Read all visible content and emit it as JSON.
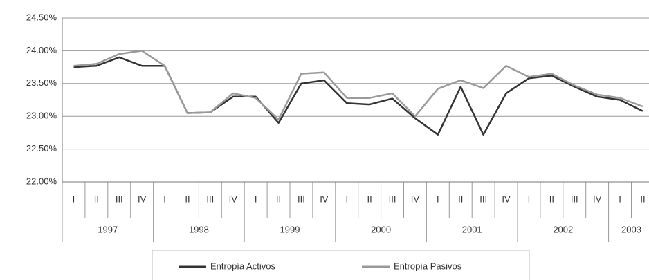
{
  "chart_data": {
    "type": "line",
    "year_groups": [
      {
        "label": "1997",
        "quarters": [
          "I",
          "II",
          "III",
          "IV"
        ]
      },
      {
        "label": "1998",
        "quarters": [
          "I",
          "II",
          "III",
          "IV"
        ]
      },
      {
        "label": "1999",
        "quarters": [
          "I",
          "II",
          "III",
          "IV"
        ]
      },
      {
        "label": "2000",
        "quarters": [
          "I",
          "II",
          "III",
          "IV"
        ]
      },
      {
        "label": "2001",
        "quarters": [
          "I",
          "II",
          "III",
          "IV"
        ]
      },
      {
        "label": "2002",
        "quarters": [
          "I",
          "II",
          "III",
          "IV"
        ]
      },
      {
        "label": "2003",
        "quarters": [
          "I",
          "II"
        ]
      }
    ],
    "series": [
      {
        "name": "Entropía Activos",
        "color": "#333333",
        "values": [
          23.75,
          23.77,
          23.9,
          23.77,
          23.77,
          23.05,
          23.06,
          23.3,
          23.3,
          22.9,
          23.5,
          23.55,
          23.2,
          23.18,
          23.27,
          22.97,
          22.72,
          23.45,
          22.72,
          23.35,
          23.58,
          23.62,
          23.45,
          23.3,
          23.25,
          23.08
        ]
      },
      {
        "name": "Entropía Pasivos",
        "color": "#9a9a9a",
        "values": [
          23.77,
          23.8,
          23.95,
          24.0,
          23.77,
          23.05,
          23.06,
          23.35,
          23.28,
          22.95,
          23.65,
          23.67,
          23.28,
          23.28,
          23.35,
          23.0,
          23.42,
          23.55,
          23.43,
          23.77,
          23.6,
          23.65,
          23.47,
          23.33,
          23.28,
          23.15
        ]
      }
    ],
    "ylim": [
      22,
      24.5
    ],
    "yticks": [
      {
        "value": 22,
        "label": "22.00%"
      },
      {
        "value": 22.5,
        "label": "22.50%"
      },
      {
        "value": 23,
        "label": "23.00%"
      },
      {
        "value": 23.5,
        "label": "23.50%"
      },
      {
        "value": 24,
        "label": "24.00%"
      },
      {
        "value": 24.5,
        "label": "24.50%"
      }
    ],
    "grid": true
  }
}
